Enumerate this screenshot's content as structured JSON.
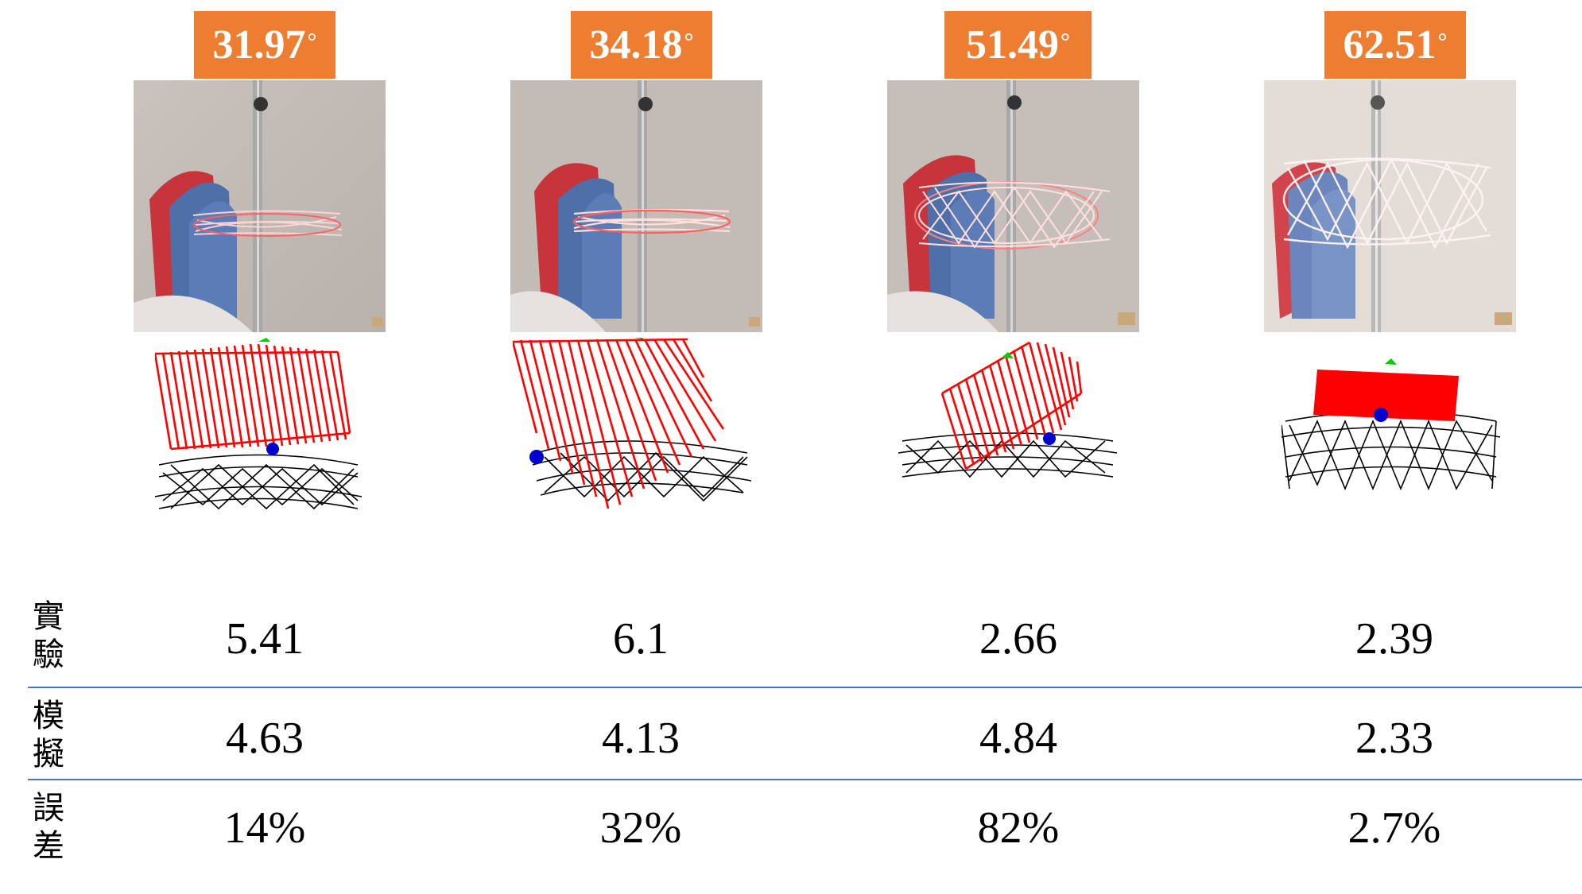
{
  "columns": [
    {
      "angle": "31.97",
      "photo_scene": "light-trail-narrow",
      "sim_scene": "sim-1"
    },
    {
      "angle": "34.18",
      "photo_scene": "light-trail-narrow",
      "sim_scene": "sim-2"
    },
    {
      "angle": "51.49",
      "photo_scene": "light-trail-wide",
      "sim_scene": "sim-3"
    },
    {
      "angle": "62.51",
      "photo_scene": "light-trail-bright",
      "sim_scene": "sim-4"
    }
  ],
  "degree_symbol": "°",
  "table": {
    "rows": [
      {
        "label_1": "實",
        "label_2": "驗",
        "values": [
          "5.41",
          "6.1",
          "2.66",
          "2.39"
        ]
      },
      {
        "label_1": "模",
        "label_2": "擬",
        "values": [
          "4.63",
          "4.13",
          "4.84",
          "2.33"
        ]
      },
      {
        "label_1": "誤",
        "label_2": "差",
        "values": [
          "14%",
          "32%",
          "82%",
          "2.7%"
        ]
      }
    ]
  },
  "colors": {
    "badge": "#ED7D31",
    "divider": "#4472C4",
    "trace": "#FF0000",
    "pivot": "#0000CC",
    "marker": "#00CC00"
  }
}
